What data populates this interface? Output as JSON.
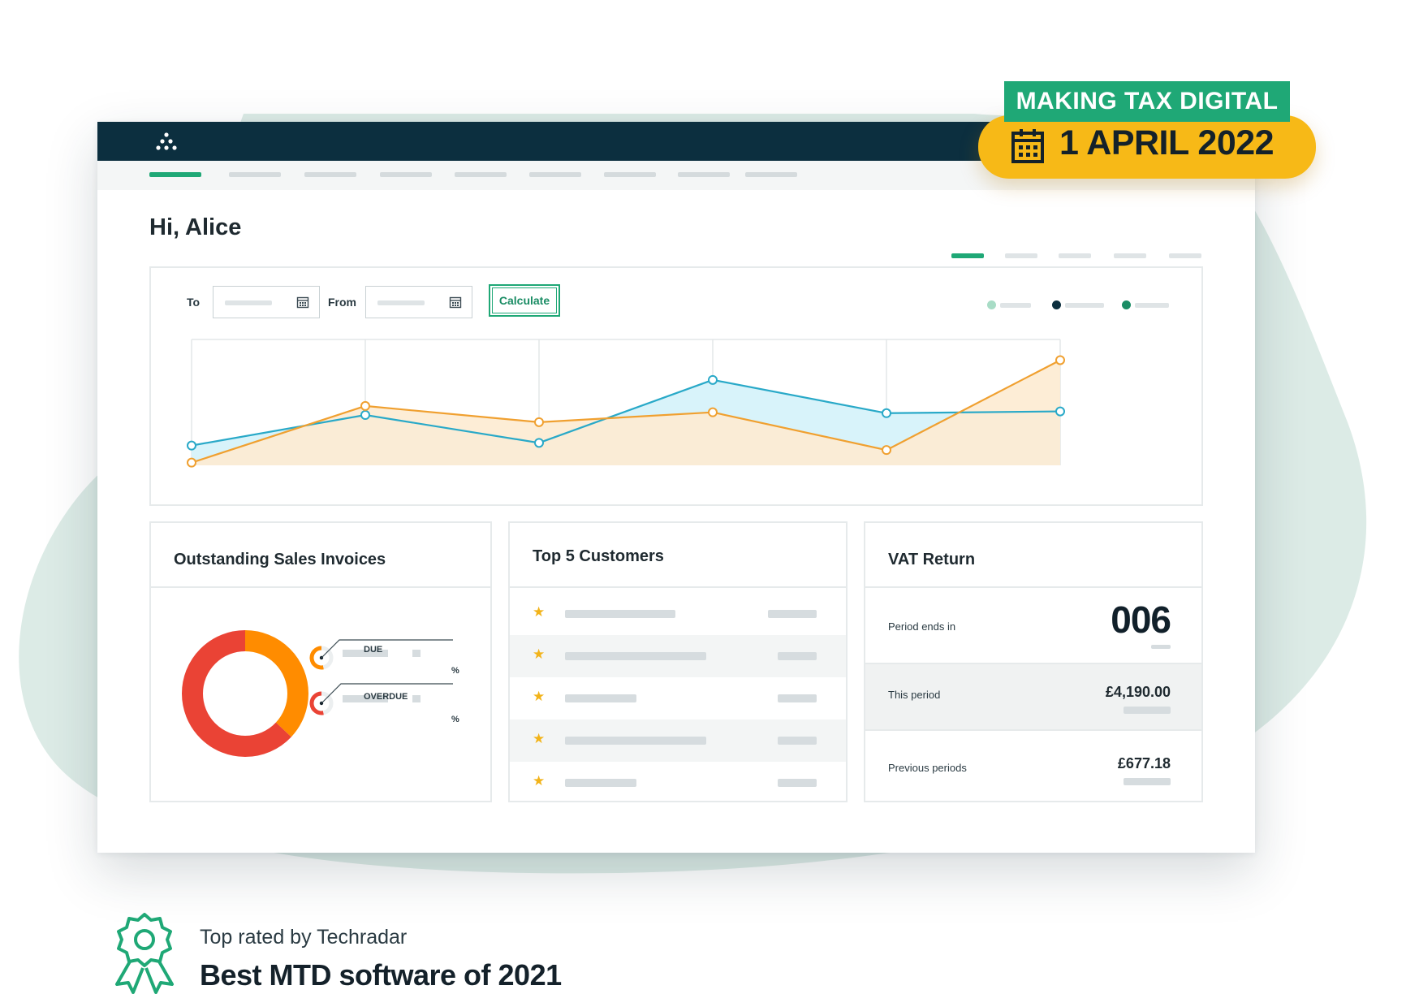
{
  "app": {
    "greeting": "Hi, Alice",
    "colors": {
      "brand_dark": "#0c2f3f",
      "brand_green": "#1fa876",
      "accent_yellow": "#f7b917",
      "series_blue": "#29a9c8",
      "series_orange": "#f0a030",
      "donut_red": "#ea4335",
      "donut_orange": "#ff8c00"
    }
  },
  "filters": {
    "to_label": "To",
    "from_label": "From",
    "calculate_label": "Calculate"
  },
  "chart_data": {
    "type": "area",
    "x": [
      1,
      2,
      3,
      4,
      5,
      6
    ],
    "series": [
      {
        "values": [
          22,
          56,
          25,
          95,
          58,
          60
        ],
        "color": "#29a9c8"
      },
      {
        "values": [
          3,
          66,
          48,
          59,
          17,
          117
        ],
        "color": "#f0a030"
      }
    ],
    "ylim": [
      0,
      140
    ],
    "grid": true,
    "legend": "top-right"
  },
  "panels": {
    "sales": {
      "title": "Outstanding Sales Invoices",
      "due_label": "DUE",
      "overdue_label": "OVERDUE",
      "percent_symbol": "%",
      "donut": [
        {
          "name": "due",
          "value": 37,
          "color": "#ff8c00"
        },
        {
          "name": "overdue",
          "value": 63,
          "color": "#ea4335"
        }
      ]
    },
    "customers": {
      "title": "Top 5 Customers",
      "star": "★"
    },
    "vat": {
      "title": "VAT Return",
      "period_label": "Period ends in",
      "period_value": "006",
      "this_label": "This period",
      "this_value": "£4,190.00",
      "previous_label": "Previous periods",
      "previous_value": "£677.18"
    }
  },
  "badge": {
    "title": "MAKING TAX DIGITAL",
    "date": "1 APRIL 2022",
    "icon": "calendar-icon"
  },
  "award": {
    "small": "Top rated by Techradar",
    "big": "Best MTD software of 2021",
    "icon": "award-ribbon-icon"
  }
}
